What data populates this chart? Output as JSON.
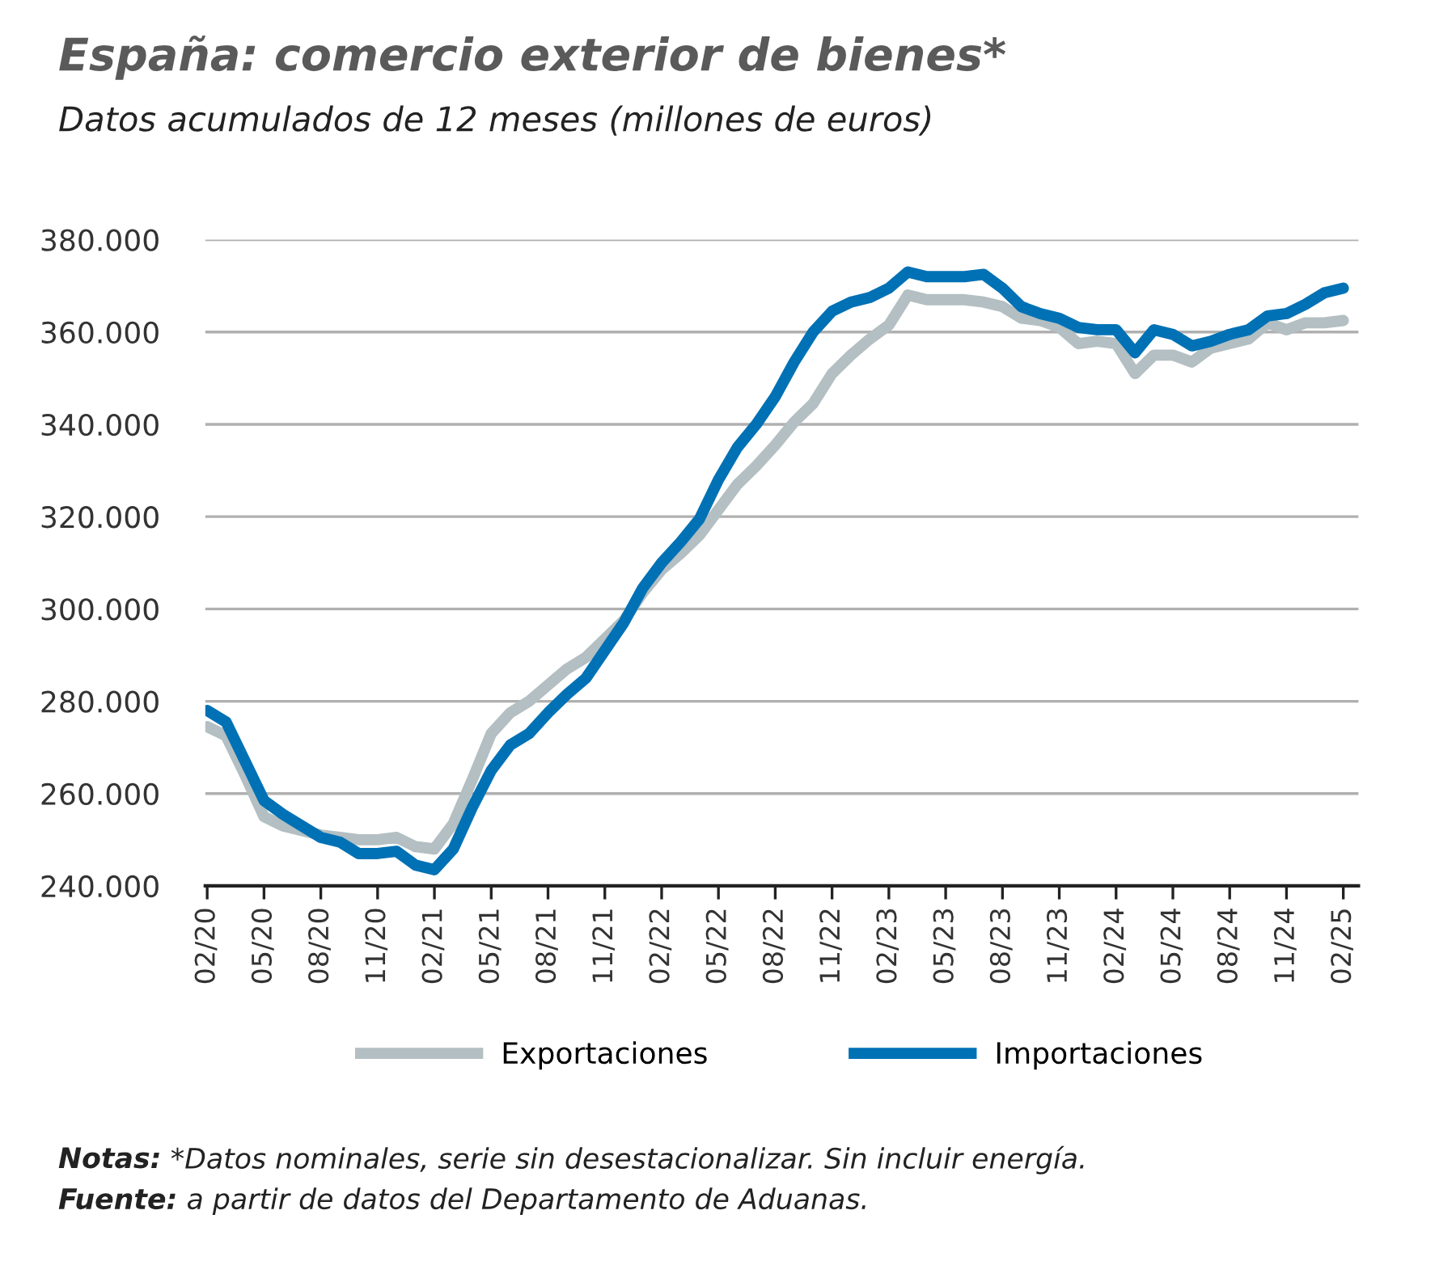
{
  "chart_data": {
    "type": "line",
    "title": "España: comercio exterior de bienes*",
    "subtitle": "Datos acumulados de 12 meses (millones de euros)",
    "categories": [
      "02/20",
      null,
      null,
      "05/20",
      null,
      null,
      "08/20",
      null,
      null,
      "11/20",
      null,
      null,
      "02/21",
      null,
      null,
      "05/21",
      null,
      null,
      "08/21",
      null,
      null,
      "11/21",
      null,
      null,
      "02/22",
      null,
      null,
      "05/22",
      null,
      null,
      "08/22",
      null,
      null,
      "11/22",
      null,
      null,
      "02/23",
      null,
      null,
      "05/23",
      null,
      null,
      "08/23",
      null,
      null,
      "11/23",
      null,
      null,
      "02/24",
      null,
      null,
      "05/24",
      null,
      null,
      "08/24",
      null,
      null,
      "11/24",
      null,
      null,
      "02/25"
    ],
    "series": [
      {
        "name": "Exportaciones",
        "color": "#b3bfc2",
        "values": [
          274500,
          272500,
          264000,
          255000,
          253000,
          252000,
          251000,
          250500,
          250000,
          250000,
          250500,
          248500,
          248000,
          253500,
          263000,
          273000,
          277500,
          280000,
          283500,
          287000,
          289500,
          293500,
          297500,
          303500,
          308500,
          312000,
          316000,
          321500,
          327000,
          331000,
          335500,
          340500,
          344500,
          351000,
          355000,
          358500,
          361500,
          368000,
          367000,
          367000,
          367000,
          366500,
          365500,
          363000,
          362500,
          361000,
          357500,
          358000,
          357500,
          351000,
          355000,
          355000,
          353500,
          356500,
          357500,
          358500,
          362000,
          360500,
          362000,
          362000,
          362500
        ]
      },
      {
        "name": "Importaciones",
        "color": "#0071b5",
        "values": [
          278000,
          275500,
          267000,
          258500,
          255500,
          253000,
          250500,
          249500,
          247000,
          247000,
          247500,
          244500,
          243500,
          248000,
          257000,
          265000,
          270500,
          273000,
          277500,
          281500,
          285000,
          291000,
          297000,
          304500,
          310000,
          314500,
          319500,
          328000,
          335000,
          340000,
          346000,
          353500,
          360000,
          364500,
          366500,
          367500,
          369500,
          373000,
          372000,
          372000,
          372000,
          372500,
          369500,
          365500,
          364000,
          363000,
          361000,
          360500,
          360500,
          355500,
          360500,
          359500,
          357000,
          358000,
          359500,
          360500,
          363500,
          364000,
          366000,
          368500,
          369500
        ]
      }
    ],
    "ylim": [
      240000,
      380000
    ],
    "yticks": [
      {
        "value": 240000,
        "label": "240.000"
      },
      {
        "value": 260000,
        "label": "260.000"
      },
      {
        "value": 280000,
        "label": "280.000"
      },
      {
        "value": 300000,
        "label": "300.000"
      },
      {
        "value": 320000,
        "label": "320.000"
      },
      {
        "value": 340000,
        "label": "340.000"
      },
      {
        "value": 360000,
        "label": "360.000"
      },
      {
        "value": 380000,
        "label": "380.000"
      }
    ],
    "grid": "y",
    "legend": "bottom",
    "marker": "none",
    "line_style": "solid",
    "annotations": [
      "Notas: *Datos nominales, serie sin desestacionalizar. Sin incluir energía.",
      "Fuente: a partir de datos del Departamento de Aduanas."
    ]
  }
}
